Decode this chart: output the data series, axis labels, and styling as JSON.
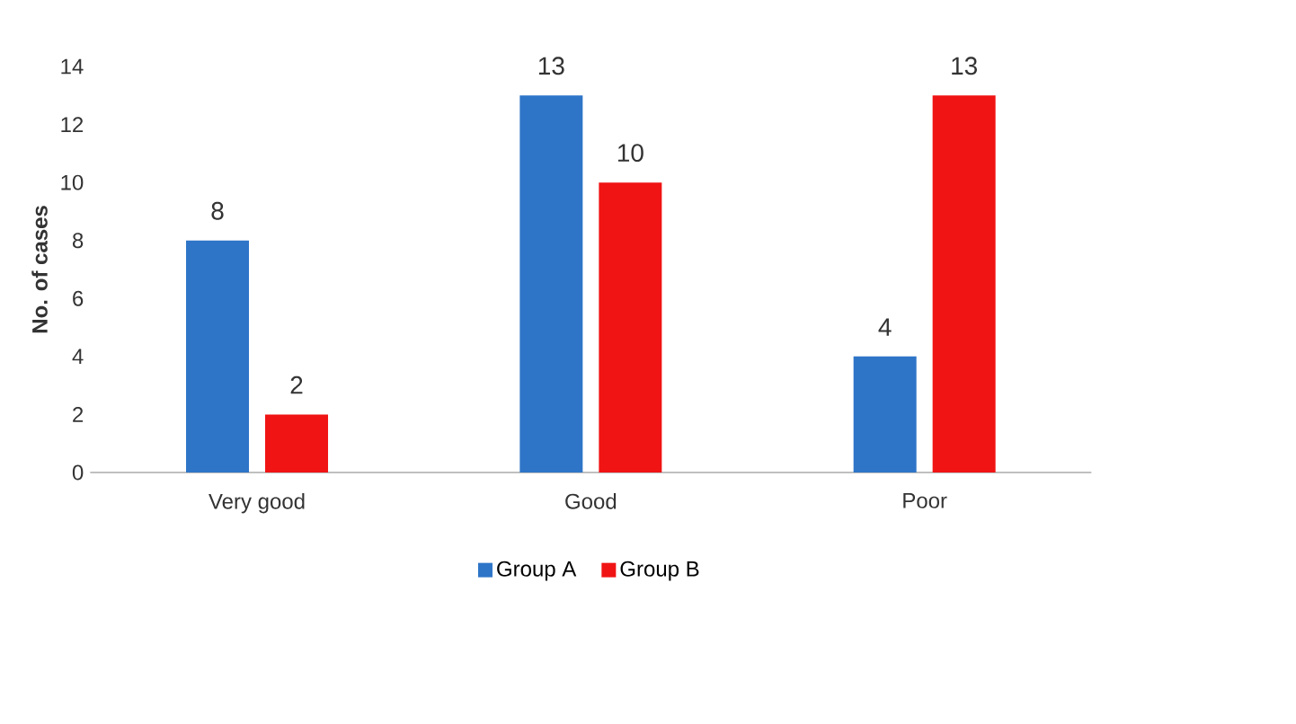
{
  "chart_data": {
    "type": "bar",
    "ylabel": "No. of cases",
    "categories": [
      "Very good",
      "Good",
      "Poor"
    ],
    "series": [
      {
        "name": "Group A",
        "color": "#2e75c8",
        "values": [
          8,
          13,
          4
        ]
      },
      {
        "name": "Group B",
        "color": "#f01414",
        "values": [
          2,
          10,
          13
        ]
      }
    ],
    "ylim": [
      0,
      14
    ],
    "yticks": [
      0,
      2,
      4,
      6,
      8,
      10,
      12,
      14
    ],
    "data_labels": true,
    "legend": "bottom"
  }
}
